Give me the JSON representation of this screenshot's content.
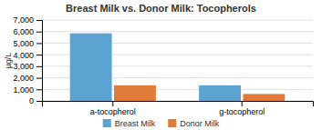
{
  "chart_data": {
    "type": "bar",
    "title": "Breast Milk vs. Donor Milk: Tocopherols",
    "categories": [
      "a-tocopherol",
      "g-tocopherol"
    ],
    "series": [
      {
        "name": "Breast Milk",
        "color": "#5BA3D0",
        "values": [
          5850,
          1350
        ]
      },
      {
        "name": "Donor Milk",
        "color": "#E07B39",
        "values": [
          1350,
          600
        ]
      }
    ],
    "ylabel": "µg/L",
    "ylim": [
      0,
      7000
    ],
    "yticks": [
      0,
      {
        "value": 1000,
        "label": "1,000"
      },
      {
        "value": 2000,
        "label": "2,000"
      },
      {
        "value": 3000,
        "label": "3,000"
      },
      {
        "value": 4000,
        "label": "4,000"
      },
      {
        "value": 5000,
        "label": "5,000"
      },
      {
        "value": 6000,
        "label": "6,000"
      },
      {
        "value": 7000,
        "label": "7,000"
      }
    ],
    "grid": true,
    "legend": "bottom"
  }
}
